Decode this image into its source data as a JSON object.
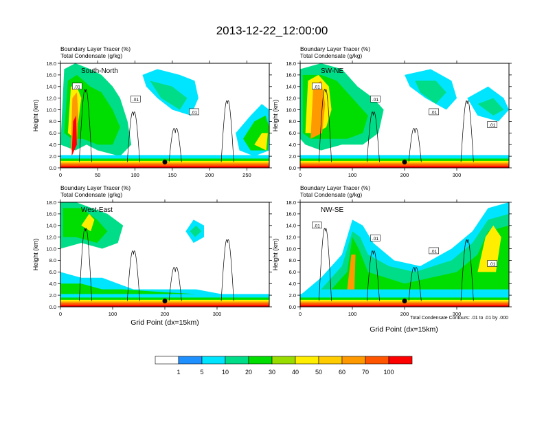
{
  "title": "2013-12-22_12:00:00",
  "panel_header": {
    "line1_name": "Boundary Layer Tracer",
    "line1_unit": "(%)",
    "line2_name": "Total Condensate",
    "line2_unit": "(g/kg)"
  },
  "ylabel": "Height (km)",
  "xlabel": "Grid Point (dx=15km)",
  "contour_note": "Total Condensate Contours: .01 to .01 by .000",
  "colorbar": {
    "colors": [
      "#ffffff",
      "#1e90ff",
      "#00e5ff",
      "#00dd88",
      "#00dd00",
      "#99dd00",
      "#ffee00",
      "#ffcc00",
      "#ff9900",
      "#ff5500",
      "#ff0000"
    ],
    "labels": [
      "1",
      "5",
      "10",
      "20",
      "30",
      "40",
      "50",
      "60",
      "70",
      "100"
    ]
  },
  "chart_data": [
    {
      "type": "heatmap",
      "name": "South-North",
      "xlim": [
        0,
        280
      ],
      "ylim": [
        0,
        18
      ],
      "xticks": [
        "0",
        "50",
        "100",
        "150",
        "200",
        "250"
      ],
      "yticks": [
        "0.0",
        "2.0",
        "4.0",
        "6.0",
        "8.0",
        "10.0",
        "12.0",
        "14.0",
        "16.0",
        "18.0"
      ],
      "marker": [
        140,
        1.0
      ],
      "contour_labels": [
        ".01",
        ".01",
        ".01"
      ]
    },
    {
      "type": "heatmap",
      "name": "SW-NE",
      "xlim": [
        0,
        400
      ],
      "ylim": [
        0,
        18
      ],
      "xticks": [
        "0",
        "100",
        "200",
        "300"
      ],
      "yticks": [
        "0.0",
        "2.0",
        "4.0",
        "6.0",
        "8.0",
        "10.0",
        "12.0",
        "14.0",
        "16.0",
        "18.0"
      ],
      "marker": [
        200,
        1.0
      ],
      "contour_labels": [
        ".01",
        ".01",
        ".01",
        ".01"
      ]
    },
    {
      "type": "heatmap",
      "name": "West-East",
      "xlim": [
        0,
        400
      ],
      "ylim": [
        0,
        18
      ],
      "xticks": [
        "0",
        "100",
        "200",
        "300"
      ],
      "yticks": [
        "0.0",
        "2.0",
        "4.0",
        "6.0",
        "8.0",
        "10.0",
        "12.0",
        "14.0",
        "16.0",
        "18.0"
      ],
      "marker": [
        200,
        1.0
      ],
      "contour_labels": []
    },
    {
      "type": "heatmap",
      "name": "NW-SE",
      "xlim": [
        0,
        400
      ],
      "ylim": [
        0,
        18
      ],
      "xticks": [
        "0",
        "100",
        "200",
        "300"
      ],
      "yticks": [
        "0.0",
        "2.0",
        "4.0",
        "6.0",
        "8.0",
        "10.0",
        "12.0",
        "14.0",
        "16.0",
        "18.0"
      ],
      "marker": [
        200,
        1.0
      ],
      "contour_labels": [
        ".01",
        ".01",
        ".01",
        ".01"
      ]
    }
  ]
}
